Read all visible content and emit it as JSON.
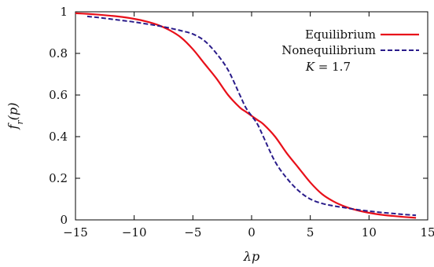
{
  "chart_data": {
    "type": "line",
    "xlabel": "λp",
    "ylabel": "f_r(p)",
    "xlim": [
      -15,
      15
    ],
    "ylim": [
      0,
      1
    ],
    "xticks": [
      -15,
      -10,
      -5,
      0,
      5,
      10,
      15
    ],
    "yticks": [
      0,
      0.2,
      0.4,
      0.6,
      0.8,
      1
    ],
    "xtick_labels": [
      "−15",
      "−10",
      "−5",
      "0",
      "5",
      "10",
      "15"
    ],
    "ytick_labels": [
      "0",
      "0.2",
      "0.4",
      "0.6",
      "0.8",
      "1"
    ],
    "grid": false,
    "legend_position": "top-right",
    "annotation": "K = 1.7",
    "series": [
      {
        "name": "Equilibrium",
        "color": "#e8101a",
        "dash": "solid",
        "x": [
          -15,
          -14,
          -13,
          -12,
          -11,
          -10,
          -9,
          -8,
          -7,
          -6,
          -5,
          -4,
          -3,
          -2,
          -1,
          -0.5,
          0,
          0.5,
          1,
          2,
          3,
          4,
          5,
          6,
          7,
          8,
          9,
          10,
          11,
          12,
          13,
          14
        ],
        "y": [
          0.993,
          0.99,
          0.986,
          0.981,
          0.975,
          0.966,
          0.954,
          0.937,
          0.912,
          0.876,
          0.82,
          0.75,
          0.68,
          0.6,
          0.54,
          0.52,
          0.5,
          0.48,
          0.46,
          0.4,
          0.32,
          0.25,
          0.18,
          0.124,
          0.088,
          0.063,
          0.046,
          0.034,
          0.025,
          0.019,
          0.014,
          0.01
        ]
      },
      {
        "name": "Nonequilibrium",
        "color": "#2a1c8a",
        "dash": "dashed",
        "x": [
          -14,
          -13,
          -12,
          -11,
          -10,
          -9,
          -8,
          -7,
          -6,
          -5,
          -4,
          -3,
          -2,
          -1,
          -0.5,
          0,
          0.5,
          1,
          2,
          3,
          4,
          5,
          6,
          7,
          8,
          9,
          10,
          11,
          12,
          13,
          14
        ],
        "y": [
          0.978,
          0.972,
          0.965,
          0.958,
          0.951,
          0.942,
          0.933,
          0.922,
          0.909,
          0.893,
          0.86,
          0.8,
          0.72,
          0.6,
          0.54,
          0.5,
          0.46,
          0.4,
          0.28,
          0.2,
          0.14,
          0.1,
          0.079,
          0.067,
          0.058,
          0.049,
          0.042,
          0.036,
          0.031,
          0.026,
          0.022
        ]
      }
    ]
  }
}
